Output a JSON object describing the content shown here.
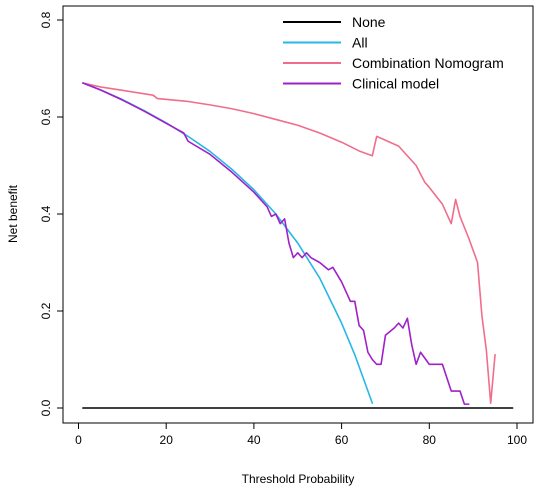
{
  "chart_data": {
    "type": "line",
    "title": "",
    "xlabel": "Threshold Probability",
    "ylabel": "Net benefit",
    "xlim": [
      0,
      100
    ],
    "ylim": [
      -0.02,
      0.82
    ],
    "xticks": [
      0,
      20,
      40,
      60,
      80,
      100
    ],
    "yticks": [
      0.0,
      0.2,
      0.4,
      0.6,
      0.8
    ],
    "ytick_labels": [
      "0.0",
      "0.2",
      "0.4",
      "0.6",
      "0.8"
    ],
    "grid": false,
    "legend_position": "top-right",
    "series": [
      {
        "name": "None",
        "color": "#000000",
        "x": [
          1,
          99
        ],
        "y": [
          0,
          0
        ]
      },
      {
        "name": "All",
        "color": "#29B6E8",
        "x": [
          1,
          5,
          10,
          15,
          20,
          25,
          30,
          35,
          40,
          45,
          50,
          55,
          60,
          63,
          65,
          67
        ],
        "y": [
          0.67,
          0.656,
          0.636,
          0.613,
          0.588,
          0.56,
          0.529,
          0.492,
          0.45,
          0.4,
          0.34,
          0.268,
          0.175,
          0.11,
          0.06,
          0.01
        ]
      },
      {
        "name": "Combination Nomogram",
        "color": "#F06E8C",
        "x": [
          1,
          5,
          10,
          17,
          18,
          25,
          30,
          35,
          40,
          45,
          50,
          55,
          60,
          64,
          67,
          68,
          70,
          73,
          77,
          79,
          80,
          83,
          85,
          86,
          87,
          89,
          91,
          92,
          93,
          94,
          95
        ],
        "y": [
          0.67,
          0.662,
          0.655,
          0.645,
          0.638,
          0.632,
          0.625,
          0.617,
          0.607,
          0.595,
          0.583,
          0.567,
          0.548,
          0.53,
          0.52,
          0.56,
          0.552,
          0.54,
          0.5,
          0.465,
          0.455,
          0.42,
          0.38,
          0.43,
          0.395,
          0.35,
          0.3,
          0.19,
          0.12,
          0.01,
          0.11
        ]
      },
      {
        "name": "Clinical model",
        "color": "#A020C8",
        "x": [
          1,
          5,
          10,
          15,
          20,
          24,
          25,
          30,
          35,
          40,
          43,
          44,
          45,
          46,
          47,
          48,
          49,
          50,
          51,
          52,
          53,
          55,
          57,
          58,
          60,
          62,
          63,
          64,
          65,
          66,
          67,
          68,
          69,
          70,
          72,
          73,
          74,
          75,
          76,
          77,
          78,
          80,
          81,
          83,
          85,
          86,
          87,
          88,
          89
        ],
        "y": [
          0.67,
          0.656,
          0.635,
          0.612,
          0.587,
          0.567,
          0.55,
          0.523,
          0.486,
          0.445,
          0.415,
          0.395,
          0.4,
          0.38,
          0.39,
          0.34,
          0.31,
          0.32,
          0.31,
          0.32,
          0.31,
          0.3,
          0.285,
          0.29,
          0.26,
          0.22,
          0.22,
          0.17,
          0.16,
          0.115,
          0.1,
          0.09,
          0.09,
          0.15,
          0.165,
          0.175,
          0.165,
          0.185,
          0.13,
          0.09,
          0.115,
          0.09,
          0.09,
          0.09,
          0.035,
          0.035,
          0.035,
          0.008,
          0.008
        ]
      }
    ]
  }
}
